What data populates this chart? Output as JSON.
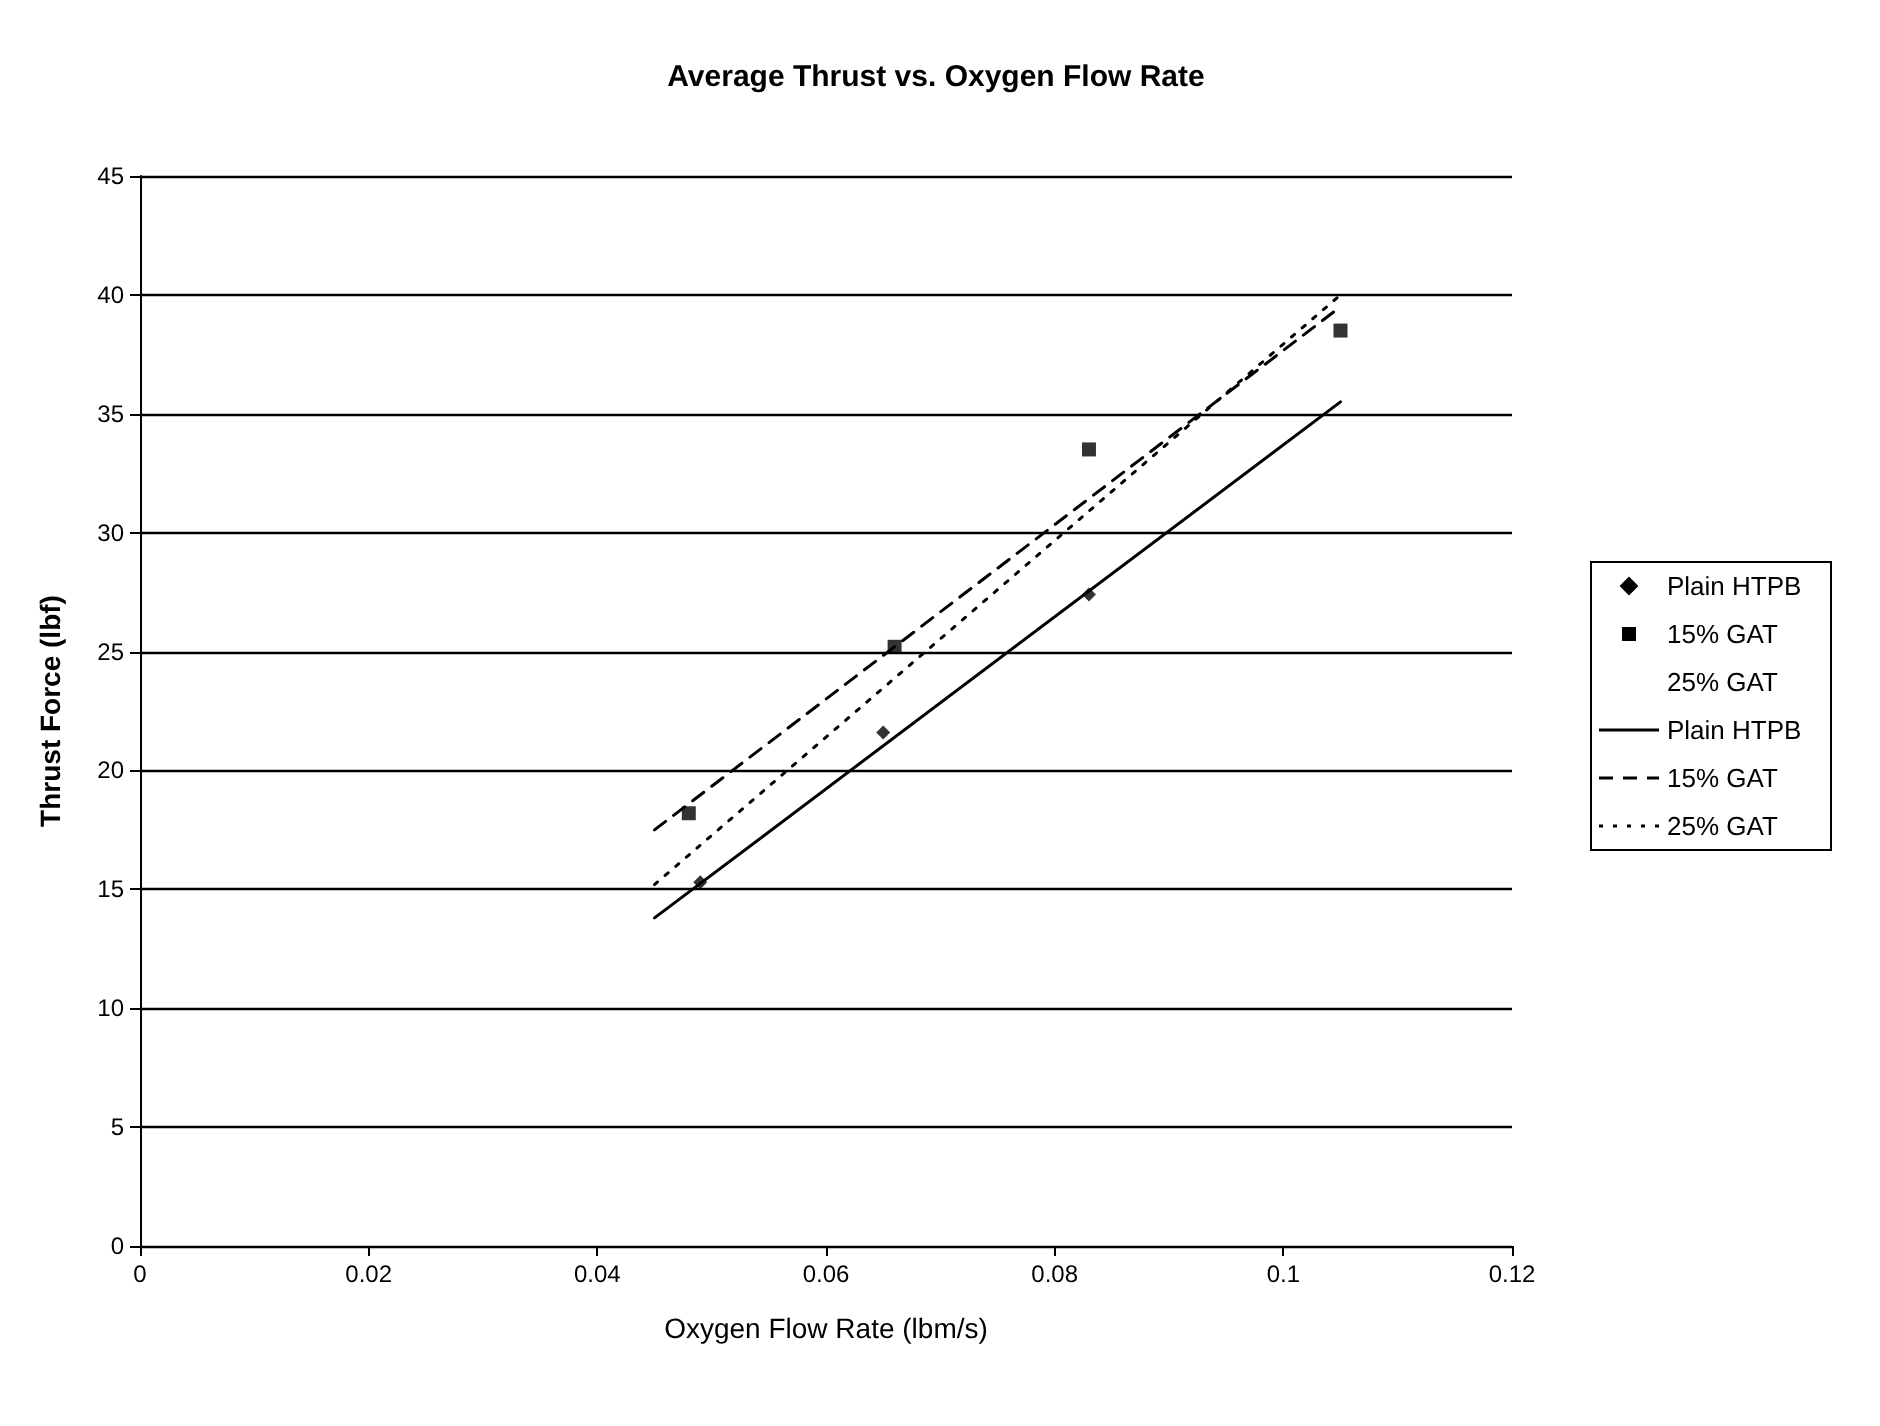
{
  "chart_data": {
    "type": "scatter",
    "title": "Average Thrust vs. Oxygen Flow Rate",
    "xlabel": "Oxygen Flow Rate (lbm/s)",
    "ylabel": "Thrust Force (lbf)",
    "xlim": [
      0,
      0.12
    ],
    "xticks": [
      0,
      0.02,
      0.04,
      0.06,
      0.08,
      0.1,
      0.12
    ],
    "ylim": [
      0,
      45
    ],
    "yticks": [
      0,
      5,
      10,
      15,
      20,
      25,
      30,
      35,
      40,
      45
    ],
    "grid": "y",
    "legend": "right",
    "series": [
      {
        "name": "Plain HTPB",
        "marker": "diamond",
        "color": "#000000",
        "x": [
          0.049,
          0.065,
          0.083
        ],
        "values": [
          15.3,
          21.6,
          27.4
        ]
      },
      {
        "name": "15% GAT",
        "marker": "square",
        "color": "#000000",
        "x": [
          0.048,
          0.066,
          0.083,
          0.105
        ],
        "values": [
          18.2,
          25.2,
          33.5,
          38.5
        ]
      },
      {
        "name": "25% GAT",
        "marker": "none",
        "color": "#000000"
      },
      {
        "name": "Plain HTPB",
        "type": "line",
        "line_style": "solid",
        "marker": "none",
        "color": "#000000",
        "x": [
          0.045,
          0.105
        ],
        "values": [
          13.8,
          35.5
        ]
      },
      {
        "name": "15% GAT",
        "type": "line",
        "line_style": "dashed",
        "marker": "none",
        "color": "#000000",
        "x": [
          0.045,
          0.105
        ],
        "values": [
          17.5,
          39.5
        ]
      },
      {
        "name": "25% GAT",
        "type": "line",
        "line_style": "dotted",
        "marker": "none",
        "color": "#000000",
        "x": [
          0.045,
          0.105
        ],
        "values": [
          15.2,
          40
        ]
      }
    ]
  }
}
